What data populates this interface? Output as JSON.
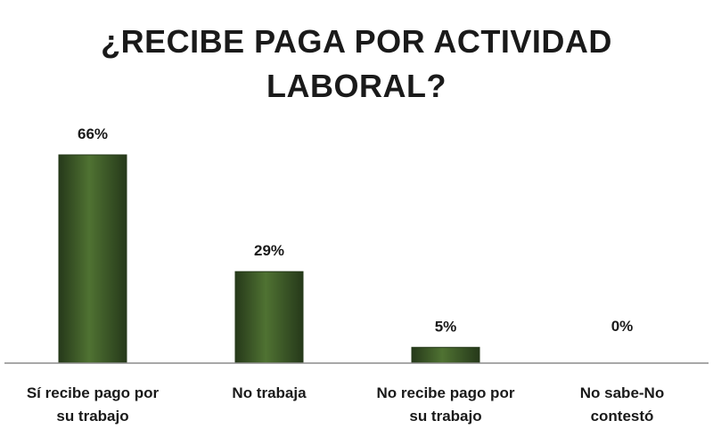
{
  "chart_data": {
    "type": "bar",
    "title_lines": [
      "¿RECIBE PAGA POR ACTIVIDAD",
      "LABORAL?"
    ],
    "categories": [
      [
        "Sí recibe pago por",
        "su trabajo"
      ],
      [
        "No trabaja"
      ],
      [
        "No recibe pago por",
        "su trabajo"
      ],
      [
        "No sabe-No",
        "contestó"
      ]
    ],
    "values": [
      66,
      29,
      5,
      0
    ],
    "data_labels": [
      "66%",
      "29%",
      "5%",
      "0%"
    ],
    "ylim": [
      0,
      66
    ],
    "grid": false,
    "legend": "none",
    "bar_color": "#3b5a24",
    "bar_highlight": "#4f7232",
    "bar_shadow": "#26391a"
  }
}
